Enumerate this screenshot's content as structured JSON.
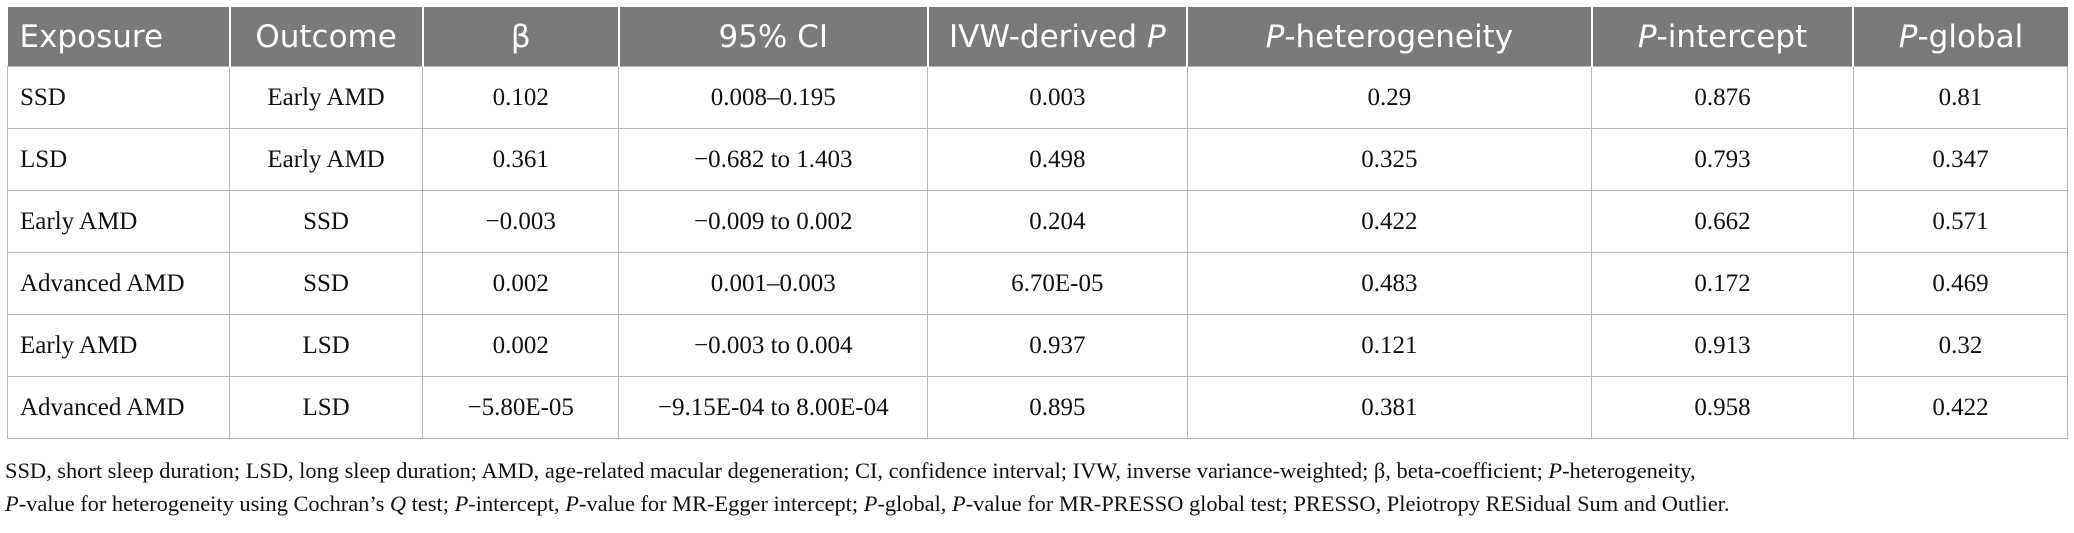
{
  "table": {
    "headers": [
      {
        "pre": "Exposure",
        "ital": "",
        "post": ""
      },
      {
        "pre": "Outcome",
        "ital": "",
        "post": ""
      },
      {
        "pre": "β",
        "ital": "",
        "post": ""
      },
      {
        "pre": "95% CI",
        "ital": "",
        "post": ""
      },
      {
        "pre": "IVW-derived ",
        "ital": "P",
        "post": ""
      },
      {
        "pre": "",
        "ital": "P",
        "post": "-heterogeneity"
      },
      {
        "pre": "",
        "ital": "P",
        "post": "-intercept"
      },
      {
        "pre": "",
        "ital": "P",
        "post": "-global"
      }
    ],
    "rows": [
      [
        "SSD",
        "Early AMD",
        "0.102",
        "0.008–0.195",
        "0.003",
        "0.29",
        "0.876",
        "0.81"
      ],
      [
        "LSD",
        "Early AMD",
        "0.361",
        "−0.682 to 1.403",
        "0.498",
        "0.325",
        "0.793",
        "0.347"
      ],
      [
        "Early AMD",
        "SSD",
        "−0.003",
        "−0.009 to 0.002",
        "0.204",
        "0.422",
        "0.662",
        "0.571"
      ],
      [
        "Advanced AMD",
        "SSD",
        "0.002",
        "0.001–0.003",
        "6.70E-05",
        "0.483",
        "0.172",
        "0.469"
      ],
      [
        "Early AMD",
        "LSD",
        "0.002",
        "−0.003 to 0.004",
        "0.937",
        "0.121",
        "0.913",
        "0.32"
      ],
      [
        "Advanced AMD",
        "LSD",
        "−5.80E-05",
        "−9.15E-04 to 8.00E-04",
        "0.895",
        "0.381",
        "0.958",
        "0.422"
      ]
    ]
  },
  "footnote": {
    "line1": [
      {
        "t": "SSD, short sleep duration; LSD, long sleep duration; AMD, age-related macular degeneration; CI, confidence interval; IVW, inverse variance-weighted; β, beta-coefficient; ",
        "i": false
      },
      {
        "t": "P",
        "i": true
      },
      {
        "t": "-heterogeneity,",
        "i": false
      }
    ],
    "line2": [
      {
        "t": "P",
        "i": true
      },
      {
        "t": "-value for heterogeneity using Cochran’s ",
        "i": false
      },
      {
        "t": "Q",
        "i": true
      },
      {
        "t": " test; ",
        "i": false
      },
      {
        "t": "P",
        "i": true
      },
      {
        "t": "-intercept, ",
        "i": false
      },
      {
        "t": "P",
        "i": true
      },
      {
        "t": "-value for MR-Egger intercept; ",
        "i": false
      },
      {
        "t": "P",
        "i": true
      },
      {
        "t": "-global, ",
        "i": false
      },
      {
        "t": "P",
        "i": true
      },
      {
        "t": "-value for MR-PRESSO global test; PRESSO, Pleiotropy RESidual Sum and Outlier.",
        "i": false
      }
    ]
  }
}
